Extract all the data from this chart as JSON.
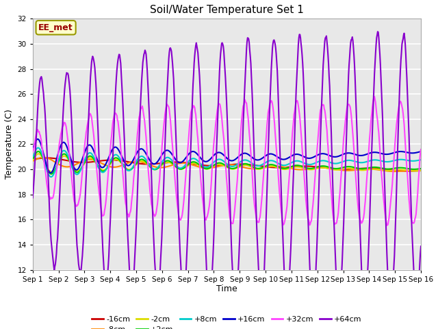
{
  "title": "Soil/Water Temperature Set 1",
  "xlabel": "Time",
  "ylabel": "Temperature (C)",
  "ylim": [
    12,
    32
  ],
  "yticks": [
    12,
    14,
    16,
    18,
    20,
    22,
    24,
    26,
    28,
    30,
    32
  ],
  "xtick_labels": [
    "Sep 1",
    "Sep 2",
    "Sep 3",
    "Sep 4",
    "Sep 5",
    "Sep 6",
    "Sep 7",
    "Sep 8",
    "Sep 9",
    "Sep 10",
    "Sep 11",
    "Sep 12",
    "Sep 13",
    "Sep 14",
    "Sep 15",
    "Sep 16"
  ],
  "annotation_text": "EE_met",
  "annotation_color": "#990000",
  "annotation_bg": "#ffffcc",
  "annotation_border": "#999900",
  "plot_bg": "#e8e8e8",
  "fig_bg": "#ffffff",
  "series": {
    "-16cm": {
      "color": "#cc0000",
      "lw": 1.5,
      "zorder": 5
    },
    "-8cm": {
      "color": "#ff8800",
      "lw": 1.5,
      "zorder": 5
    },
    "-2cm": {
      "color": "#dddd00",
      "lw": 1.5,
      "zorder": 5
    },
    "+2cm": {
      "color": "#00cc00",
      "lw": 1.5,
      "zorder": 5
    },
    "+8cm": {
      "color": "#00cccc",
      "lw": 1.5,
      "zorder": 5
    },
    "+16cm": {
      "color": "#0000cc",
      "lw": 1.5,
      "zorder": 5
    },
    "+32cm": {
      "color": "#ff44ff",
      "lw": 1.5,
      "zorder": 6
    },
    "+64cm": {
      "color": "#8800cc",
      "lw": 1.5,
      "zorder": 6
    }
  }
}
